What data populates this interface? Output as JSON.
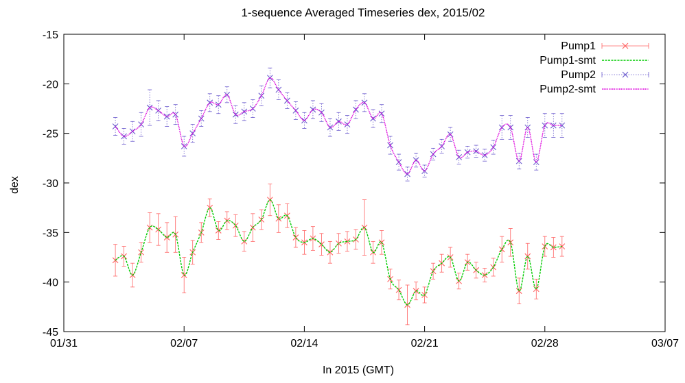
{
  "chart_data": {
    "type": "line",
    "title": "1-sequence Averaged Timeseries dex, 2015/02",
    "xlabel": "In 2015 (GMT)",
    "ylabel": "dex",
    "xlim": [
      "2015-01-31",
      "2015-03-07"
    ],
    "ylim": [
      -45,
      -15
    ],
    "x_ticks": [
      "01/31",
      "02/07",
      "02/14",
      "02/21",
      "02/28",
      "03/07"
    ],
    "y_ticks": [
      "-15",
      "-20",
      "-25",
      "-30",
      "-35",
      "-40",
      "-45"
    ],
    "grid": false,
    "legend_position": "top-right",
    "x": [
      "2015-02-03",
      "2015-02-03.5",
      "2015-02-04",
      "2015-02-04.5",
      "2015-02-05",
      "2015-02-05.5",
      "2015-02-06",
      "2015-02-06.5",
      "2015-02-07",
      "2015-02-07.5",
      "2015-02-08",
      "2015-02-08.5",
      "2015-02-09",
      "2015-02-09.5",
      "2015-02-10",
      "2015-02-10.5",
      "2015-02-11",
      "2015-02-11.5",
      "2015-02-12",
      "2015-02-12.5",
      "2015-02-13",
      "2015-02-13.5",
      "2015-02-14",
      "2015-02-14.5",
      "2015-02-15",
      "2015-02-15.5",
      "2015-02-16",
      "2015-02-16.5",
      "2015-02-17",
      "2015-02-17.5",
      "2015-02-18",
      "2015-02-18.5",
      "2015-02-19",
      "2015-02-19.5",
      "2015-02-20",
      "2015-02-20.5",
      "2015-02-21",
      "2015-02-21.5",
      "2015-02-22",
      "2015-02-22.5",
      "2015-02-23",
      "2015-02-23.5",
      "2015-02-24",
      "2015-02-24.5",
      "2015-02-25",
      "2015-02-25.5",
      "2015-02-26",
      "2015-02-26.5",
      "2015-02-27",
      "2015-02-27.5",
      "2015-02-28",
      "2015-02-28.5",
      "2015-03-01"
    ],
    "series": [
      {
        "name": "Pump1",
        "style": "points with error bars",
        "color": "#ff6060",
        "marker": "x",
        "y": [
          -37.8,
          -37.4,
          -39.3,
          -37.0,
          -34.5,
          -34.7,
          -35.5,
          -35.2,
          -39.3,
          -37.0,
          -35.0,
          -32.5,
          -34.8,
          -33.8,
          -34.3,
          -35.9,
          -34.5,
          -33.7,
          -31.7,
          -33.6,
          -33.3,
          -35.5,
          -36.0,
          -35.6,
          -36.2,
          -37.0,
          -36.1,
          -35.9,
          -35.7,
          -34.5,
          -37.0,
          -36.0,
          -39.7,
          -40.8,
          -42.3,
          -40.9,
          -41.3,
          -38.9,
          -38.1,
          -37.5,
          -39.9,
          -38.0,
          -38.8,
          -39.3,
          -38.5,
          -36.7,
          -36.0,
          -40.9,
          -37.4,
          -40.7,
          -36.4,
          -36.5,
          -36.4
        ],
        "err": [
          1.6,
          1.0,
          1.2,
          1.0,
          1.5,
          1.6,
          1.5,
          1.8,
          1.8,
          1.2,
          1.0,
          0.9,
          0.9,
          0.9,
          1.1,
          1.0,
          1.4,
          1.0,
          1.6,
          1.4,
          1.2,
          1.0,
          1.2,
          1.2,
          1.1,
          1.1,
          1.0,
          1.0,
          1.0,
          2.8,
          1.1,
          1.2,
          1.0,
          1.0,
          2.0,
          0.9,
          0.8,
          0.8,
          0.9,
          1.0,
          0.8,
          0.8,
          0.8,
          0.7,
          0.9,
          1.3,
          1.4,
          1.3,
          1.3,
          1.0,
          1.0,
          1.0,
          1.0
        ]
      },
      {
        "name": "Pump1-smt",
        "style": "smooth line",
        "color": "#00cc00"
      },
      {
        "name": "Pump2",
        "style": "points with error bars",
        "color": "#6a5acd",
        "marker": "x",
        "y": [
          -24.3,
          -25.3,
          -24.8,
          -24.1,
          -22.4,
          -22.7,
          -23.3,
          -23.1,
          -26.3,
          -25.0,
          -23.5,
          -21.9,
          -22.1,
          -21.1,
          -23.1,
          -22.8,
          -22.5,
          -21.2,
          -19.4,
          -20.6,
          -21.7,
          -22.7,
          -23.7,
          -22.6,
          -22.9,
          -24.4,
          -23.8,
          -24.1,
          -22.6,
          -21.9,
          -23.5,
          -23.0,
          -26.2,
          -27.9,
          -29.1,
          -27.7,
          -28.8,
          -27.1,
          -26.3,
          -25.1,
          -27.4,
          -26.9,
          -26.8,
          -27.2,
          -26.4,
          -24.4,
          -24.4,
          -27.8,
          -24.4,
          -27.9,
          -24.2,
          -24.2,
          -24.2
        ],
        "err": [
          0.9,
          0.8,
          1.0,
          1.2,
          1.8,
          1.0,
          1.0,
          1.0,
          1.0,
          0.9,
          0.8,
          0.9,
          0.9,
          0.8,
          0.9,
          0.9,
          0.9,
          1.0,
          1.0,
          1.0,
          0.8,
          0.9,
          0.8,
          0.9,
          0.9,
          0.9,
          0.9,
          0.9,
          0.9,
          0.9,
          0.9,
          0.9,
          0.9,
          0.8,
          0.7,
          0.7,
          0.6,
          0.6,
          0.7,
          0.7,
          0.7,
          0.6,
          0.6,
          0.6,
          0.7,
          1.2,
          1.2,
          0.8,
          1.0,
          0.8,
          1.2,
          1.2,
          1.2
        ]
      },
      {
        "name": "Pump2-smt",
        "style": "smooth line",
        "color": "#dd00dd"
      }
    ]
  }
}
